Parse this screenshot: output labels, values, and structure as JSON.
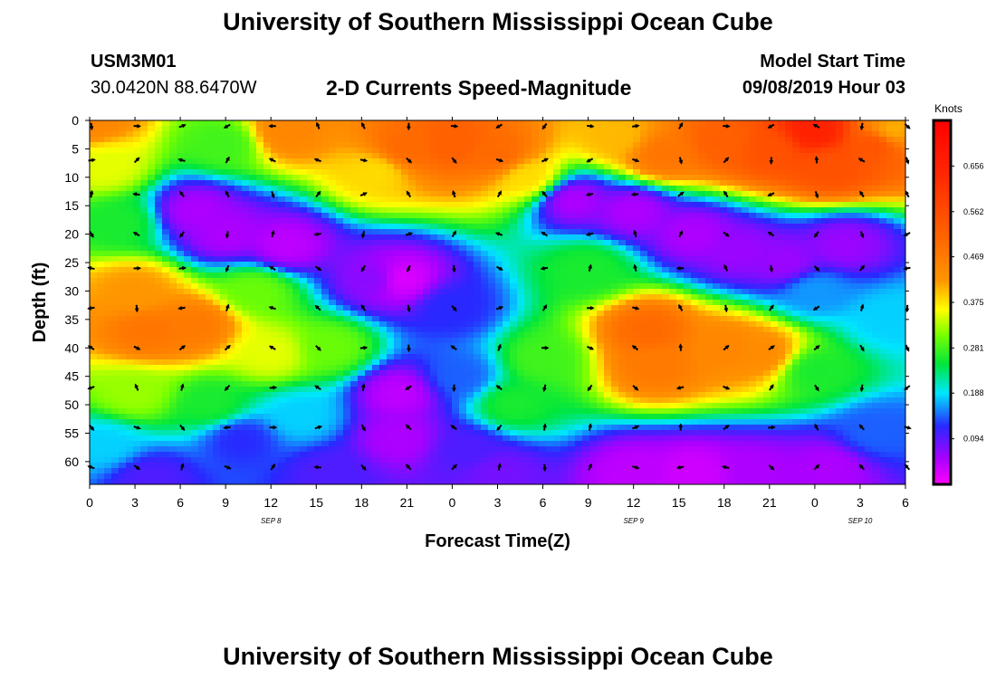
{
  "page": {
    "title": "University of Southern Mississippi Ocean Cube",
    "footer_title": "University of Southern Mississippi Ocean Cube",
    "station_id": "USM3M01",
    "coordinates": "30.0420N 88.6470W",
    "subtitle": "2-D Currents Speed-Magnitude",
    "model_start_label": "Model Start Time",
    "model_start_value": "09/08/2019 Hour 03"
  },
  "chart_data": {
    "type": "heatmap",
    "title": "2-D Currents Speed-Magnitude",
    "xlabel": "Forecast Time(Z)",
    "ylabel": "Depth (ft)",
    "x_tick_labels": [
      "0",
      "3",
      "6",
      "9",
      "12",
      "15",
      "18",
      "21",
      "0",
      "3",
      "6",
      "9",
      "12",
      "15",
      "18",
      "21",
      "0",
      "3",
      "6"
    ],
    "x_range_hours": [
      0,
      54
    ],
    "y_ticks": [
      0,
      5,
      10,
      15,
      20,
      25,
      30,
      35,
      40,
      45,
      50,
      55,
      60
    ],
    "y_range": [
      0,
      64
    ],
    "y_inverted": true,
    "date_labels": [
      {
        "text": "SEP 8",
        "at_hour": 12
      },
      {
        "text": "SEP 9",
        "at_hour": 36
      },
      {
        "text": "SEP 10",
        "at_hour": 51
      }
    ],
    "colorbar": {
      "label": "Knots",
      "min": 0.0,
      "max": 0.75,
      "ticks": [
        "0.656",
        "0.562",
        "0.469",
        "0.375",
        "0.281",
        "0.188",
        "0.094"
      ],
      "tick_values": [
        0.656,
        0.562,
        0.469,
        0.375,
        0.281,
        0.188,
        0.094
      ]
    },
    "speed_centers": [
      {
        "hour": 0,
        "depth": 0,
        "speed": 0.45
      },
      {
        "hour": 1,
        "depth": 8,
        "speed": 0.35
      },
      {
        "hour": 13,
        "depth": 2,
        "speed": 0.45
      },
      {
        "hour": 4,
        "depth": 37,
        "speed": 0.48
      },
      {
        "hour": 7,
        "depth": 36,
        "speed": 0.47
      },
      {
        "hour": 3,
        "depth": 30,
        "speed": 0.42
      },
      {
        "hour": 12,
        "depth": 41,
        "speed": 0.35
      },
      {
        "hour": 21,
        "depth": 5,
        "speed": 0.5
      },
      {
        "hour": 24,
        "depth": 4,
        "speed": 0.52
      },
      {
        "hour": 27,
        "depth": 6,
        "speed": 0.5
      },
      {
        "hour": 19,
        "depth": 9,
        "speed": 0.38
      },
      {
        "hour": 29,
        "depth": 10,
        "speed": 0.38
      },
      {
        "hour": 37,
        "depth": 37,
        "speed": 0.5
      },
      {
        "hour": 37.5,
        "depth": 43,
        "speed": 0.47
      },
      {
        "hour": 42,
        "depth": 40,
        "speed": 0.45
      },
      {
        "hour": 44.5,
        "depth": 41,
        "speed": 0.44
      },
      {
        "hour": 35,
        "depth": 3,
        "speed": 0.4
      },
      {
        "hour": 38,
        "depth": 6,
        "speed": 0.48
      },
      {
        "hour": 42,
        "depth": 4,
        "speed": 0.52
      },
      {
        "hour": 45,
        "depth": 5,
        "speed": 0.55
      },
      {
        "hour": 48,
        "depth": 2,
        "speed": 0.66
      },
      {
        "hour": 49,
        "depth": 8,
        "speed": 0.55
      },
      {
        "hour": 52,
        "depth": 4,
        "speed": 0.55
      },
      {
        "hour": 53,
        "depth": 2,
        "speed": 0.4
      },
      {
        "hour": 3,
        "depth": 48,
        "speed": 0.32
      },
      {
        "hour": 8,
        "depth": 50,
        "speed": 0.26
      },
      {
        "hour": 48,
        "depth": 44,
        "speed": 0.26
      },
      {
        "hour": 30,
        "depth": 42,
        "speed": 0.28
      },
      {
        "hour": 28,
        "depth": 50,
        "speed": 0.26
      },
      {
        "hour": 33,
        "depth": 26,
        "speed": 0.26
      },
      {
        "hour": 16,
        "depth": 40,
        "speed": 0.3
      },
      {
        "hour": 11,
        "depth": 30,
        "speed": 0.3
      },
      {
        "hour": 9,
        "depth": 4,
        "speed": 0.28
      },
      {
        "hour": 2,
        "depth": 18,
        "speed": 0.26
      },
      {
        "hour": 20.5,
        "depth": 48,
        "speed": 0.04
      },
      {
        "hour": 20.5,
        "depth": 56,
        "speed": 0.05
      },
      {
        "hour": 20.5,
        "depth": 28,
        "speed": 0.02
      },
      {
        "hour": 19,
        "depth": 28,
        "speed": 0.07
      },
      {
        "hour": 7,
        "depth": 16,
        "speed": 0.05
      },
      {
        "hour": 9,
        "depth": 20,
        "speed": 0.05
      },
      {
        "hour": 13,
        "depth": 22,
        "speed": 0.04
      },
      {
        "hour": 32,
        "depth": 14,
        "speed": 0.05
      },
      {
        "hour": 36,
        "depth": 16,
        "speed": 0.05
      },
      {
        "hour": 40,
        "depth": 20,
        "speed": 0.05
      },
      {
        "hour": 43,
        "depth": 23,
        "speed": 0.06
      },
      {
        "hour": 46,
        "depth": 25,
        "speed": 0.06
      },
      {
        "hour": 50,
        "depth": 22,
        "speed": 0.06
      },
      {
        "hour": 36,
        "depth": 62,
        "speed": 0.04
      },
      {
        "hour": 40,
        "depth": 62,
        "speed": 0.03
      },
      {
        "hour": 44,
        "depth": 62,
        "speed": 0.05
      },
      {
        "hour": 49,
        "depth": 61,
        "speed": 0.05
      },
      {
        "hour": 16,
        "depth": 62,
        "speed": 0.1
      },
      {
        "hour": 4,
        "depth": 63,
        "speed": 0.1
      },
      {
        "hour": 27,
        "depth": 62,
        "speed": 0.08
      },
      {
        "hour": 24,
        "depth": 33,
        "speed": 0.12
      },
      {
        "hour": 24.5,
        "depth": 45,
        "speed": 0.14
      },
      {
        "hour": 25,
        "depth": 58,
        "speed": 0.1
      },
      {
        "hour": 14,
        "depth": 52,
        "speed": 0.18
      },
      {
        "hour": 52,
        "depth": 55,
        "speed": 0.14
      },
      {
        "hour": 1,
        "depth": 57,
        "speed": 0.18
      },
      {
        "hour": 53,
        "depth": 35,
        "speed": 0.18
      },
      {
        "hour": 48,
        "depth": 30,
        "speed": 0.16
      },
      {
        "hour": 10,
        "depth": 56,
        "speed": 0.12
      }
    ],
    "vectors": {
      "hours": [
        0,
        3,
        6,
        9,
        12,
        15,
        18,
        21,
        24,
        27,
        30,
        33,
        36,
        39,
        42,
        45,
        48,
        51,
        54
      ],
      "depths": [
        1,
        7,
        13,
        20,
        26,
        33,
        40,
        47,
        54,
        61
      ],
      "seed_note": "arrow directions vary by cell"
    }
  }
}
